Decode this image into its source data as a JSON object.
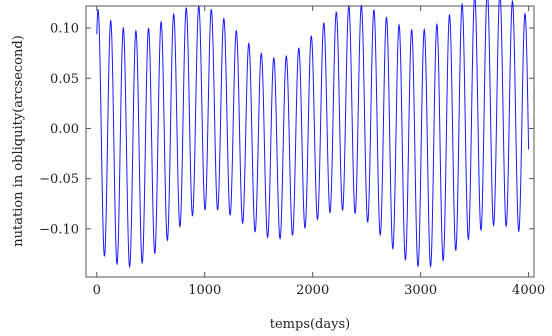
{
  "chart_data": {
    "type": "line",
    "title": "",
    "xlabel": "temps(days)",
    "ylabel": "nutation in obliquity(arcsecond)",
    "xlim": [
      -100,
      4050
    ],
    "ylim": [
      -0.148,
      0.122
    ],
    "x_ticks": [
      0,
      1000,
      2000,
      3000,
      4000
    ],
    "x_tick_labels": [
      "0",
      "1000",
      "2000",
      "3000",
      "4000"
    ],
    "y_ticks": [
      -0.1,
      -0.05,
      0.0,
      0.05,
      0.1
    ],
    "y_tick_labels": [
      "−0.10",
      "−0.05",
      "0.00",
      "0.05",
      "0.10"
    ],
    "grid": false,
    "legend": "none",
    "series": [
      {
        "color": "#1a1aff",
        "sampling_step_days": 2,
        "x_range": [
          0,
          4000
        ],
        "components": [
          {
            "amplitude": 0.105,
            "period_days": 116.25,
            "phase_rad": -0.66
          },
          {
            "amplitude": 0.015,
            "period_days": 120.5,
            "phase_rad": -0.66
          },
          {
            "amplitude": -0.02,
            "period_days": 1340,
            "phase_rad": -1.53
          }
        ]
      }
    ]
  }
}
